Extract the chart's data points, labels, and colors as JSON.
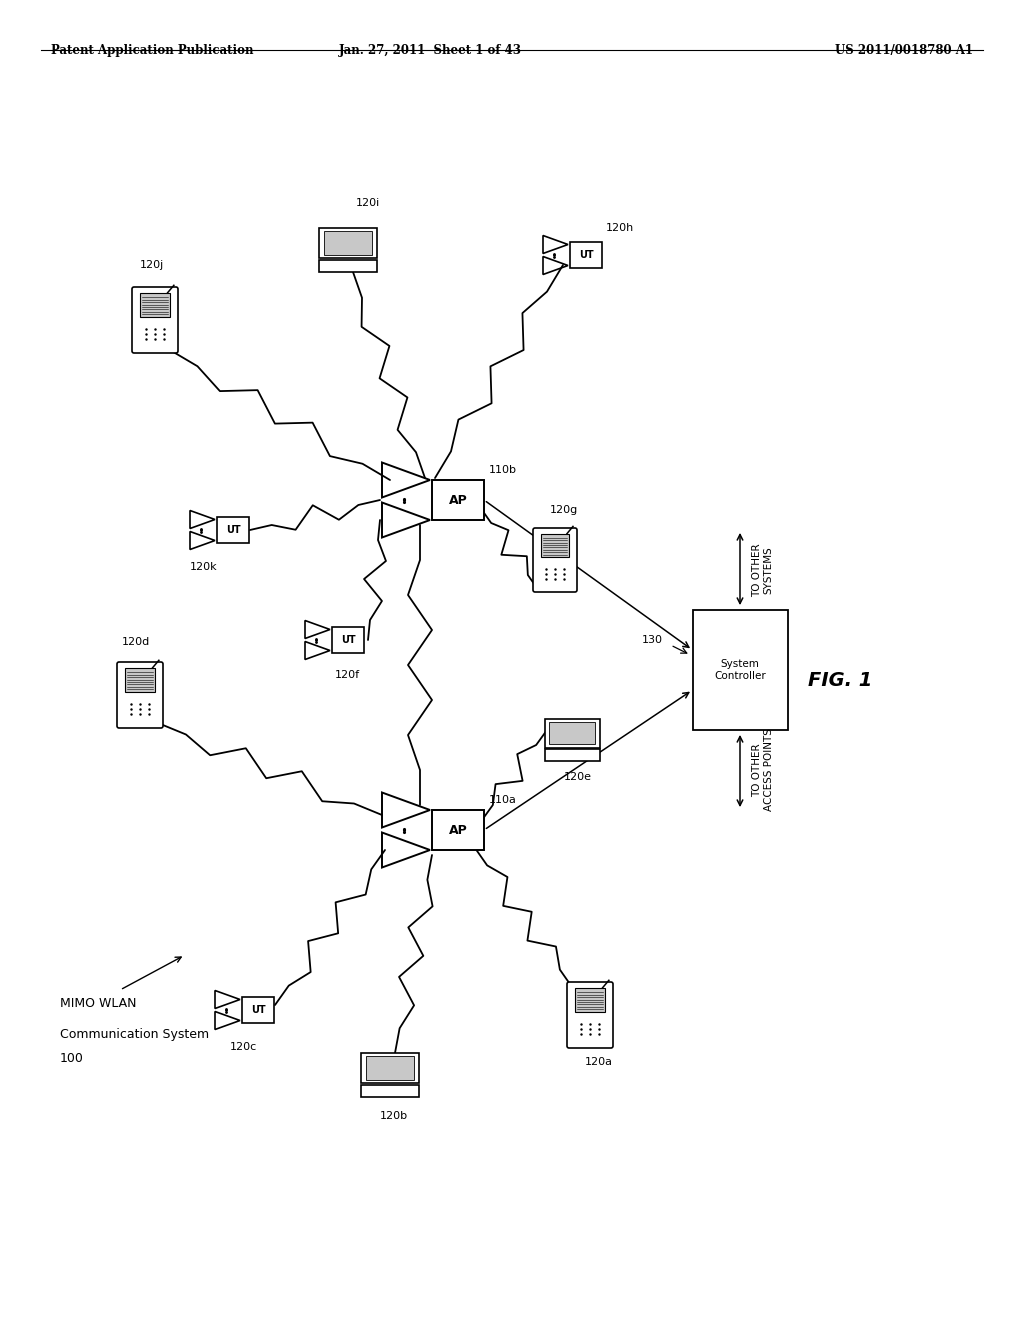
{
  "bg_color": "#ffffff",
  "header_left": "Patent Application Publication",
  "header_center": "Jan. 27, 2011  Sheet 1 of 43",
  "header_right": "US 2011/0018780 A1",
  "fig_label": "FIG. 1",
  "system_label_line1": "MIMO WLAN",
  "system_label_line2": "Communication System",
  "system_number": "100",
  "ap_b_label": "110b",
  "ap_a_label": "110a",
  "controller_label": "130",
  "to_other_systems": "TO OTHER\nSYSTEMS",
  "to_other_ap": "TO OTHER\nACCESS POINTS"
}
